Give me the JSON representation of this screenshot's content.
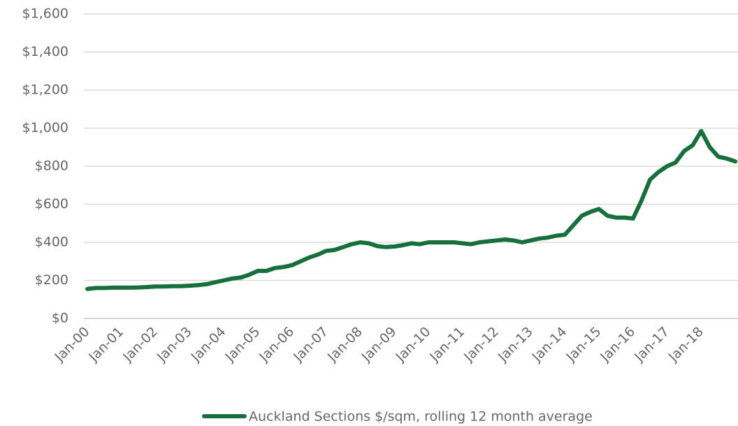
{
  "chart_data": {
    "type": "line",
    "categories": [
      "Jan-00",
      null,
      null,
      null,
      "Jan-01",
      null,
      null,
      null,
      "Jan-02",
      null,
      null,
      null,
      "Jan-03",
      null,
      null,
      null,
      "Jan-04",
      null,
      null,
      null,
      "Jan-05",
      null,
      null,
      null,
      "Jan-06",
      null,
      null,
      null,
      "Jan-07",
      null,
      null,
      null,
      "Jan-08",
      null,
      null,
      null,
      "Jan-09",
      null,
      null,
      null,
      "Jan-10",
      null,
      null,
      null,
      "Jan-11",
      null,
      null,
      null,
      "Jan-12",
      null,
      null,
      null,
      "Jan-13",
      null,
      null,
      null,
      "Jan-14",
      null,
      null,
      null,
      "Jan-15",
      null,
      null,
      null,
      "Jan-16",
      null,
      null,
      null,
      "Jan-17",
      null,
      null,
      null,
      "Jan-18",
      null,
      null,
      null,
      null
    ],
    "series": [
      {
        "name": "Auckland Sections $/sqm, rolling 12 month average",
        "color": "#17703c",
        "values": [
          155,
          160,
          160,
          162,
          162,
          162,
          163,
          165,
          168,
          168,
          170,
          170,
          172,
          175,
          180,
          190,
          200,
          210,
          215,
          230,
          250,
          250,
          265,
          270,
          280,
          300,
          320,
          335,
          355,
          360,
          375,
          390,
          400,
          395,
          380,
          375,
          378,
          385,
          395,
          390,
          400,
          400,
          400,
          400,
          395,
          390,
          400,
          405,
          410,
          415,
          410,
          400,
          410,
          420,
          425,
          435,
          440,
          490,
          540,
          560,
          575,
          540,
          530,
          530,
          525,
          620,
          730,
          770,
          800,
          820,
          880,
          910,
          985,
          900,
          850,
          840,
          825
        ]
      }
    ],
    "ylim": [
      0,
      1600
    ],
    "yticks": [
      {
        "value": 0,
        "label": "$0"
      },
      {
        "value": 200,
        "label": "$200"
      },
      {
        "value": 400,
        "label": "$400"
      },
      {
        "value": 600,
        "label": "$600"
      },
      {
        "value": 800,
        "label": "$800"
      },
      {
        "value": 1000,
        "label": "$1,000"
      },
      {
        "value": 1200,
        "label": "$1,200"
      },
      {
        "value": 1400,
        "label": "$1,400"
      },
      {
        "value": 1600,
        "label": "$1,600"
      }
    ],
    "grid": true,
    "legend": "bottom"
  }
}
